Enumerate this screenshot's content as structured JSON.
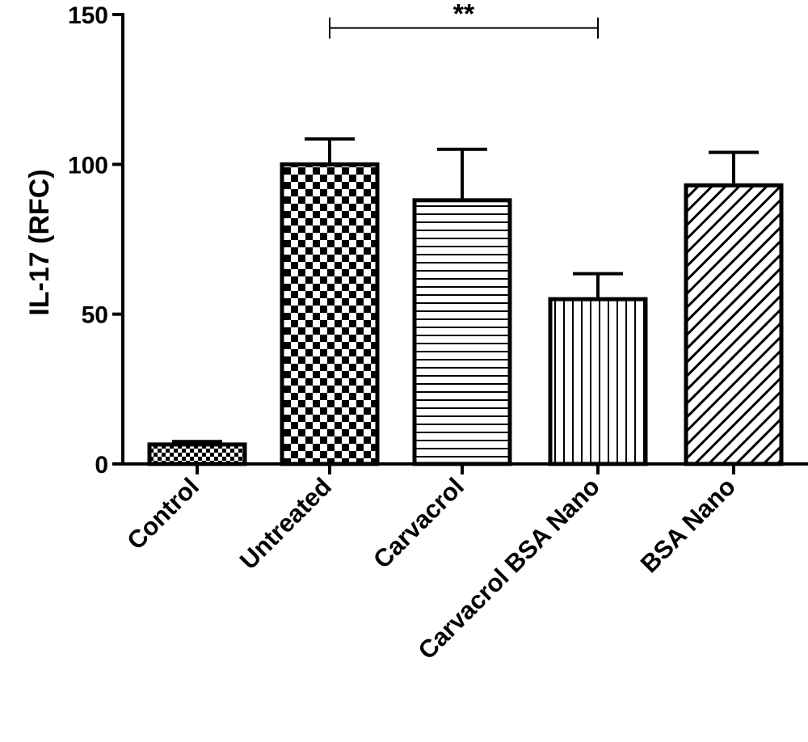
{
  "chart_data": {
    "type": "bar",
    "title": "",
    "xlabel": "",
    "ylabel": "IL-17 (RFC)",
    "ylim": [
      0,
      150
    ],
    "yticks": [
      0,
      50,
      100,
      150
    ],
    "grid": false,
    "categories": [
      "Control",
      "Untreated",
      "Carvacrol",
      "Carvacrol BSA Nano",
      "BSA Nano"
    ],
    "values": [
      6.5,
      100,
      88,
      55,
      93
    ],
    "errors": [
      1,
      8.5,
      17,
      8.5,
      11
    ],
    "patterns": [
      "fine-checker",
      "checker",
      "horizontal-lines",
      "vertical-lines",
      "diagonal-lines"
    ],
    "significance": [
      {
        "from": 1,
        "to": 3,
        "label": "**",
        "y": 145.5
      }
    ]
  }
}
